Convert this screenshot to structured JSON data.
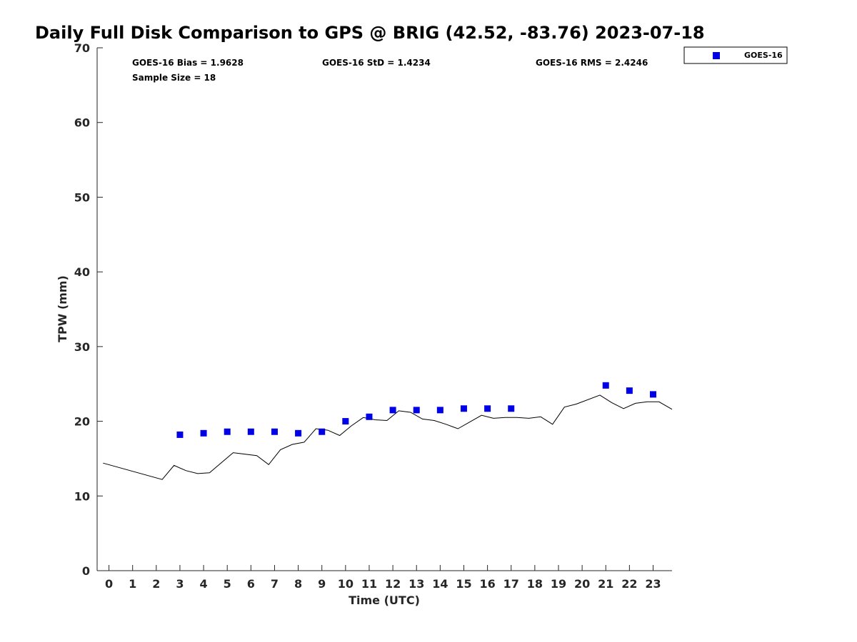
{
  "chart_data": {
    "type": "scatter",
    "title": "Daily Full Disk Comparison to GPS @ BRIG (42.52, -83.76) 2023-07-18",
    "xlabel": "Time (UTC)",
    "ylabel": "TPW (mm)",
    "xlim": [
      -0.5,
      23.8
    ],
    "ylim": [
      0,
      70
    ],
    "xticks": [
      0,
      1,
      2,
      3,
      4,
      5,
      6,
      7,
      8,
      9,
      10,
      11,
      12,
      13,
      14,
      15,
      16,
      17,
      18,
      19,
      20,
      21,
      22,
      23
    ],
    "yticks": [
      0,
      10,
      20,
      30,
      40,
      50,
      60,
      70
    ],
    "grid": false,
    "legend_position": "top-right outside",
    "stats": {
      "bias": "GOES-16 Bias = 1.9628",
      "std": "GOES-16 StD = 1.4234",
      "rms": "GOES-16 RMS = 2.4246",
      "sample": "Sample Size = 18"
    },
    "series": [
      {
        "name": "GOES-16",
        "kind": "scatter",
        "marker": "square",
        "color": "#0000e6",
        "x": [
          3,
          4,
          5,
          6,
          7,
          8,
          9,
          10,
          11,
          12,
          13,
          14,
          15,
          16,
          17,
          21,
          22,
          23
        ],
        "y": [
          18.2,
          18.4,
          18.6,
          18.6,
          18.6,
          18.4,
          18.6,
          20.0,
          20.6,
          21.5,
          21.5,
          21.5,
          21.7,
          21.7,
          21.7,
          24.8,
          24.1,
          23.6
        ]
      },
      {
        "kind": "line",
        "color": "#000000",
        "x": [
          -0.25,
          2.25,
          2.75,
          3.25,
          3.75,
          4.25,
          5.25,
          6.25,
          6.75,
          7.25,
          7.75,
          8.25,
          8.75,
          9.25,
          9.75,
          10.25,
          10.75,
          11.25,
          11.75,
          12.25,
          12.75,
          13.25,
          13.75,
          14.25,
          14.75,
          15.25,
          15.75,
          16.25,
          16.75,
          17.25,
          17.75,
          18.25,
          18.75,
          19.25,
          19.75,
          20.75,
          21.25,
          21.75,
          22.25,
          22.75,
          23.25,
          23.8
        ],
        "y": [
          14.4,
          12.2,
          14.1,
          13.4,
          13.0,
          13.1,
          15.8,
          15.4,
          14.2,
          16.2,
          16.9,
          17.2,
          19.0,
          18.8,
          18.1,
          19.4,
          20.5,
          20.2,
          20.1,
          21.4,
          21.2,
          20.3,
          20.1,
          19.6,
          19.0,
          19.9,
          20.8,
          20.4,
          20.5,
          20.5,
          20.4,
          20.6,
          19.6,
          21.9,
          22.3,
          23.5,
          22.5,
          21.7,
          22.4,
          22.6,
          22.6,
          21.6
        ]
      }
    ]
  }
}
